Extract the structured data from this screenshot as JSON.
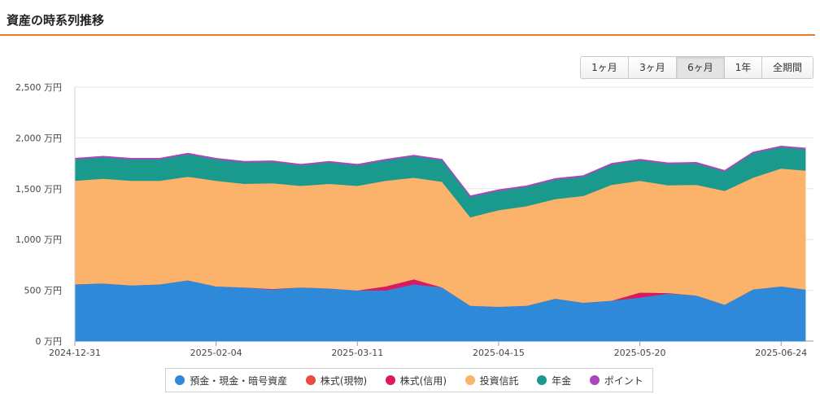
{
  "page": {
    "title": "資産の時系列推移"
  },
  "range_buttons": [
    {
      "label": "1ヶ月",
      "active": false
    },
    {
      "label": "3ヶ月",
      "active": false
    },
    {
      "label": "6ヶ月",
      "active": true
    },
    {
      "label": "1年",
      "active": false
    },
    {
      "label": "全期間",
      "active": false
    }
  ],
  "chart_data": {
    "type": "area",
    "stacked": true,
    "ylim": [
      0,
      2500
    ],
    "ytick_labels": [
      "0 万円",
      "500 万円",
      "1,000 万円",
      "1,500 万円",
      "2,000 万円",
      "2,500 万円"
    ],
    "xtick_labels": [
      "2024-12-31",
      "2025-02-04",
      "2025-03-11",
      "2025-04-15",
      "2025-05-20",
      "2025-06-24"
    ],
    "x": [
      "2024-12-31",
      "2025-01-07",
      "2025-01-14",
      "2025-01-21",
      "2025-01-28",
      "2025-02-04",
      "2025-02-11",
      "2025-02-18",
      "2025-02-25",
      "2025-03-04",
      "2025-03-11",
      "2025-03-18",
      "2025-03-25",
      "2025-04-01",
      "2025-04-08",
      "2025-04-15",
      "2025-04-22",
      "2025-04-29",
      "2025-05-06",
      "2025-05-13",
      "2025-05-20",
      "2025-05-27",
      "2025-06-03",
      "2025-06-10",
      "2025-06-17",
      "2025-06-24",
      "2025-06-30"
    ],
    "grid": true,
    "legend_position": "bottom",
    "series": [
      {
        "name": "預金・現金・暗号資産",
        "color": "#2e8ad8",
        "values": [
          560,
          570,
          550,
          560,
          600,
          540,
          530,
          510,
          530,
          520,
          500,
          500,
          560,
          530,
          350,
          340,
          350,
          420,
          380,
          400,
          430,
          470,
          450,
          360,
          510,
          540,
          510
        ]
      },
      {
        "name": "株式(現物)",
        "color": "#e74c3c",
        "values": [
          0,
          0,
          0,
          0,
          0,
          0,
          0,
          0,
          0,
          0,
          0,
          0,
          0,
          0,
          0,
          0,
          0,
          0,
          0,
          0,
          0,
          0,
          0,
          0,
          0,
          0,
          0
        ]
      },
      {
        "name": "株式(信用)",
        "color": "#d81b60",
        "values": [
          0,
          0,
          0,
          0,
          0,
          0,
          0,
          5,
          0,
          0,
          0,
          40,
          50,
          0,
          0,
          0,
          0,
          0,
          0,
          0,
          50,
          5,
          0,
          0,
          0,
          0,
          0
        ]
      },
      {
        "name": "投資信託",
        "color": "#fbb36b",
        "values": [
          1020,
          1030,
          1030,
          1020,
          1020,
          1040,
          1020,
          1040,
          1000,
          1030,
          1030,
          1040,
          1000,
          1040,
          870,
          950,
          980,
          980,
          1050,
          1140,
          1100,
          1060,
          1090,
          1120,
          1100,
          1160,
          1170
        ]
      },
      {
        "name": "年金",
        "color": "#1a9a8c",
        "values": [
          210,
          210,
          210,
          210,
          220,
          210,
          210,
          210,
          200,
          210,
          200,
          200,
          210,
          210,
          200,
          190,
          190,
          190,
          190,
          200,
          200,
          210,
          210,
          190,
          240,
          210,
          210
        ]
      },
      {
        "name": "ポイント",
        "color": "#ab47bc",
        "values": [
          10,
          10,
          10,
          10,
          10,
          10,
          10,
          10,
          10,
          10,
          10,
          10,
          10,
          10,
          10,
          10,
          10,
          10,
          10,
          10,
          10,
          10,
          10,
          10,
          10,
          10,
          10
        ]
      }
    ]
  }
}
